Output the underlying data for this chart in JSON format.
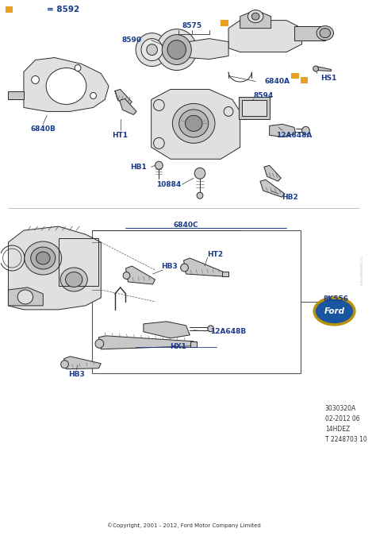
{
  "bg_color": "#ffffff",
  "fig_width": 4.74,
  "fig_height": 6.8,
  "label_color": "#1a3a8a",
  "label_fontsize": 6.5,
  "orange_color": "#e8a020",
  "line_color": "#2a2a2a",
  "part_gray": "#c8c8c8",
  "part_gray2": "#e0e0e0",
  "legend_text": "= 8592",
  "footer_lines": [
    "3030320A",
    "02-2012 06",
    "14HDEZ",
    "T 2248703 10"
  ],
  "copyright": "©Copyright, 2001 - 2012, Ford Motor Company Limited"
}
